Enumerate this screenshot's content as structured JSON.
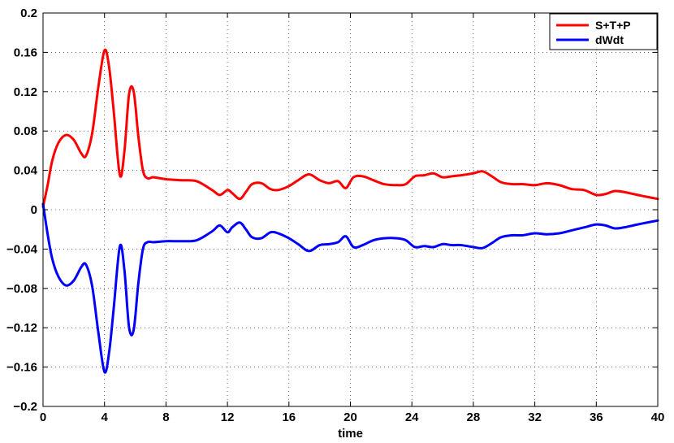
{
  "chart_data": {
    "type": "line",
    "title": "",
    "xlabel": "time",
    "ylabel": "",
    "xlim": [
      0,
      40
    ],
    "ylim": [
      -0.2,
      0.2
    ],
    "xticks": [
      0,
      4,
      8,
      12,
      16,
      20,
      24,
      28,
      32,
      36,
      40
    ],
    "yticks": [
      -0.2,
      -0.16,
      -0.12,
      -0.08,
      -0.04,
      0,
      0.04,
      0.08,
      0.12,
      0.16,
      0.2
    ],
    "xtick_labels": [
      "0",
      "4",
      "8",
      "12",
      "16",
      "20",
      "24",
      "28",
      "32",
      "36",
      "40"
    ],
    "ytick_labels": [
      "−0.2",
      "−0.16",
      "−0.12",
      "−0.08",
      "−0.04",
      "0",
      "0.04",
      "0.08",
      "0.12",
      "0.16",
      "0.2"
    ],
    "grid": true,
    "legend_position": "top-right",
    "series": [
      {
        "name": "S+T+P",
        "color": "#ff0000",
        "x": [
          0,
          0.3,
          0.6,
          1.0,
          1.5,
          2.0,
          2.5,
          2.8,
          3.2,
          3.6,
          4.0,
          4.3,
          4.6,
          5.0,
          5.3,
          5.6,
          5.9,
          6.2,
          6.5,
          6.8,
          7.2,
          8.0,
          9.0,
          10.0,
          11.0,
          11.5,
          12.0,
          12.3,
          12.8,
          13.2,
          13.6,
          14.2,
          14.8,
          15.3,
          16.0,
          16.6,
          17.3,
          18.0,
          18.6,
          19.2,
          19.7,
          20.2,
          20.8,
          21.5,
          22.2,
          23.0,
          23.6,
          24.2,
          24.8,
          25.4,
          26.0,
          26.6,
          27.2,
          28.0,
          28.6,
          29.2,
          29.8,
          30.5,
          31.2,
          32.0,
          32.8,
          33.6,
          34.4,
          35.2,
          36.0,
          36.6,
          37.2,
          37.8,
          38.4,
          39.0,
          40.0
        ],
        "y": [
          0.003,
          0.025,
          0.05,
          0.068,
          0.076,
          0.071,
          0.057,
          0.055,
          0.078,
          0.125,
          0.162,
          0.145,
          0.1,
          0.035,
          0.06,
          0.118,
          0.12,
          0.075,
          0.04,
          0.032,
          0.033,
          0.031,
          0.03,
          0.029,
          0.02,
          0.015,
          0.02,
          0.017,
          0.011,
          0.018,
          0.026,
          0.027,
          0.021,
          0.02,
          0.024,
          0.03,
          0.036,
          0.03,
          0.027,
          0.029,
          0.022,
          0.033,
          0.034,
          0.03,
          0.026,
          0.025,
          0.026,
          0.034,
          0.035,
          0.037,
          0.033,
          0.034,
          0.035,
          0.037,
          0.039,
          0.034,
          0.028,
          0.026,
          0.026,
          0.025,
          0.027,
          0.025,
          0.021,
          0.02,
          0.015,
          0.016,
          0.019,
          0.018,
          0.016,
          0.014,
          0.011
        ]
      },
      {
        "name": "dWdt",
        "color": "#0000ff",
        "x": [
          0,
          0.3,
          0.6,
          1.0,
          1.5,
          2.0,
          2.5,
          2.8,
          3.2,
          3.6,
          4.0,
          4.3,
          4.6,
          5.0,
          5.3,
          5.6,
          5.9,
          6.2,
          6.5,
          6.8,
          7.2,
          8.0,
          9.0,
          10.0,
          11.0,
          11.5,
          12.0,
          12.3,
          12.8,
          13.2,
          13.6,
          14.2,
          14.8,
          15.3,
          16.0,
          16.6,
          17.3,
          18.0,
          18.6,
          19.2,
          19.7,
          20.2,
          20.8,
          21.5,
          22.2,
          23.0,
          23.6,
          24.2,
          24.8,
          25.4,
          26.0,
          26.6,
          27.2,
          28.0,
          28.6,
          29.2,
          29.8,
          30.5,
          31.2,
          32.0,
          32.8,
          33.6,
          34.4,
          35.2,
          36.0,
          36.6,
          37.2,
          37.8,
          38.4,
          39.0,
          40.0
        ],
        "y": [
          0.006,
          -0.025,
          -0.05,
          -0.068,
          -0.077,
          -0.072,
          -0.058,
          -0.056,
          -0.078,
          -0.125,
          -0.165,
          -0.145,
          -0.1,
          -0.037,
          -0.062,
          -0.12,
          -0.122,
          -0.075,
          -0.04,
          -0.033,
          -0.033,
          -0.032,
          -0.032,
          -0.031,
          -0.022,
          -0.016,
          -0.023,
          -0.018,
          -0.013,
          -0.02,
          -0.028,
          -0.029,
          -0.023,
          -0.024,
          -0.029,
          -0.035,
          -0.042,
          -0.036,
          -0.035,
          -0.033,
          -0.027,
          -0.038,
          -0.036,
          -0.031,
          -0.029,
          -0.029,
          -0.031,
          -0.038,
          -0.037,
          -0.038,
          -0.035,
          -0.036,
          -0.036,
          -0.038,
          -0.039,
          -0.034,
          -0.028,
          -0.026,
          -0.026,
          -0.024,
          -0.025,
          -0.024,
          -0.021,
          -0.018,
          -0.015,
          -0.016,
          -0.019,
          -0.018,
          -0.016,
          -0.014,
          -0.011
        ]
      }
    ]
  }
}
